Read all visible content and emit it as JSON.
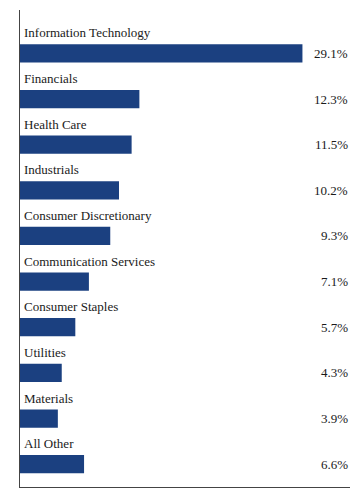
{
  "chart_data": {
    "type": "bar",
    "orientation": "horizontal",
    "categories": [
      "Information Technology",
      "Financials",
      "Health Care",
      "Industrials",
      "Consumer Discretionary",
      "Communication Services",
      "Consumer Staples",
      "Utilities",
      "Materials",
      "All Other"
    ],
    "values": [
      29.1,
      12.3,
      11.5,
      10.2,
      9.3,
      7.1,
      5.7,
      4.3,
      3.9,
      6.6
    ],
    "value_labels": [
      "29.1%",
      "12.3%",
      "11.5%",
      "10.2%",
      "9.3%",
      "7.1%",
      "5.7%",
      "4.3%",
      "3.9%",
      "6.6%"
    ],
    "data_labels": true,
    "color": "#1b4080",
    "xlim": [
      0,
      34
    ],
    "grid": false,
    "tick_labels": false
  }
}
